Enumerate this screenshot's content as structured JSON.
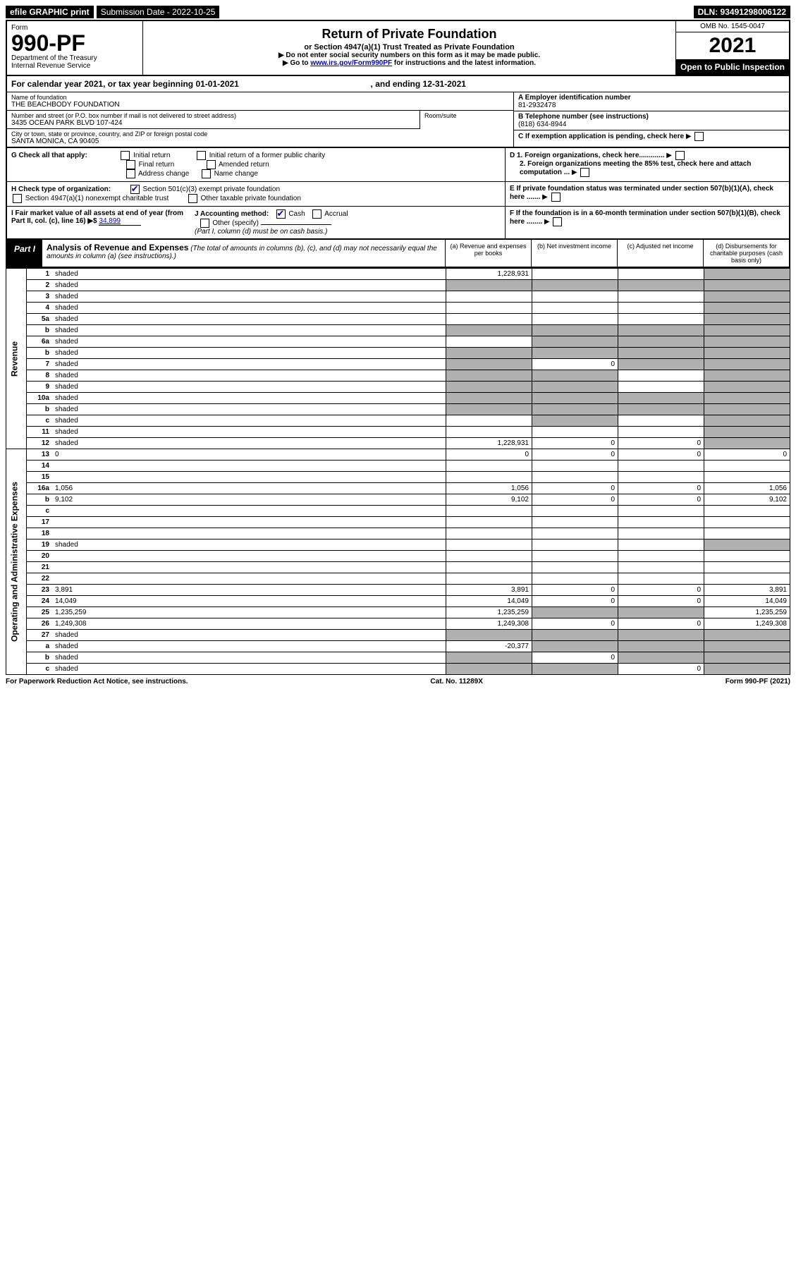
{
  "topbar": {
    "efile": "efile GRAPHIC print",
    "sub_label": "Submission Date - 2022-10-25",
    "dln": "DLN: 93491298006122"
  },
  "header": {
    "form_word": "Form",
    "form_no": "990-PF",
    "dept": "Department of the Treasury",
    "irs": "Internal Revenue Service",
    "title": "Return of Private Foundation",
    "subtitle": "or Section 4947(a)(1) Trust Treated as Private Foundation",
    "note1": "▶ Do not enter social security numbers on this form as it may be made public.",
    "note2_pre": "▶ Go to ",
    "note2_link": "www.irs.gov/Form990PF",
    "note2_post": " for instructions and the latest information.",
    "omb": "OMB No. 1545-0047",
    "year": "2021",
    "open": "Open to Public Inspection"
  },
  "cal_year": {
    "text_pre": "For calendar year 2021, or tax year beginning ",
    "begin": "01-01-2021",
    "mid": " , and ending ",
    "end": "12-31-2021"
  },
  "entity": {
    "name_label": "Name of foundation",
    "name": "THE BEACHBODY FOUNDATION",
    "addr_label": "Number and street (or P.O. box number if mail is not delivered to street address)",
    "addr": "3435 OCEAN PARK BLVD 107-424",
    "room_label": "Room/suite",
    "city_label": "City or town, state or province, country, and ZIP or foreign postal code",
    "city": "SANTA MONICA, CA  90405",
    "a_label": "A Employer identification number",
    "ein": "81-2932478",
    "b_label": "B Telephone number (see instructions)",
    "phone": "(818) 634-8944",
    "c_label": "C If exemption application is pending, check here",
    "d1": "D 1. Foreign organizations, check here.............",
    "d2": "2. Foreign organizations meeting the 85% test, check here and attach computation ...",
    "e_label": "E  If private foundation status was terminated under section 507(b)(1)(A), check here .......",
    "f_label": "F  If the foundation is in a 60-month termination under section 507(b)(1)(B), check here ........"
  },
  "g": {
    "label": "G Check all that apply:",
    "opts": [
      "Initial return",
      "Initial return of a former public charity",
      "Final return",
      "Amended return",
      "Address change",
      "Name change"
    ]
  },
  "h": {
    "label": "H Check type of organization:",
    "opt1": "Section 501(c)(3) exempt private foundation",
    "opt2": "Section 4947(a)(1) nonexempt charitable trust",
    "opt3": "Other taxable private foundation"
  },
  "i": {
    "label": "I Fair market value of all assets at end of year (from Part II, col. (c), line 16) ▶$",
    "value": "34,899"
  },
  "j": {
    "label": "J Accounting method:",
    "cash": "Cash",
    "accrual": "Accrual",
    "other": "Other (specify)",
    "note": "(Part I, column (d) must be on cash basis.)"
  },
  "part1": {
    "label": "Part I",
    "title": "Analysis of Revenue and Expenses",
    "note": "(The total of amounts in columns (b), (c), and (d) may not necessarily equal the amounts in column (a) (see instructions).)",
    "col_a": "(a)   Revenue and expenses per books",
    "col_b": "(b)   Net investment income",
    "col_c": "(c)   Adjusted net income",
    "col_d": "(d)   Disbursements for charitable purposes (cash basis only)"
  },
  "side": {
    "revenue": "Revenue",
    "expenses": "Operating and Administrative Expenses"
  },
  "rows": [
    {
      "n": "1",
      "d": "shaded",
      "a": "1,228,931",
      "b": "",
      "c": ""
    },
    {
      "n": "2",
      "d": "shaded",
      "a": "shaded",
      "b": "shaded",
      "c": "shaded"
    },
    {
      "n": "3",
      "d": "shaded",
      "a": "",
      "b": "",
      "c": ""
    },
    {
      "n": "4",
      "d": "shaded",
      "a": "",
      "b": "",
      "c": ""
    },
    {
      "n": "5a",
      "d": "shaded",
      "a": "",
      "b": "",
      "c": ""
    },
    {
      "n": "b",
      "d": "shaded",
      "a": "shaded",
      "b": "shaded",
      "c": "shaded"
    },
    {
      "n": "6a",
      "d": "shaded",
      "a": "",
      "b": "shaded",
      "c": "shaded"
    },
    {
      "n": "b",
      "d": "shaded",
      "a": "shaded",
      "b": "shaded",
      "c": "shaded"
    },
    {
      "n": "7",
      "d": "shaded",
      "a": "shaded",
      "b": "0",
      "c": "shaded"
    },
    {
      "n": "8",
      "d": "shaded",
      "a": "shaded",
      "b": "shaded",
      "c": ""
    },
    {
      "n": "9",
      "d": "shaded",
      "a": "shaded",
      "b": "shaded",
      "c": ""
    },
    {
      "n": "10a",
      "d": "shaded",
      "a": "shaded",
      "b": "shaded",
      "c": "shaded"
    },
    {
      "n": "b",
      "d": "shaded",
      "a": "shaded",
      "b": "shaded",
      "c": "shaded"
    },
    {
      "n": "c",
      "d": "shaded",
      "a": "",
      "b": "shaded",
      "c": ""
    },
    {
      "n": "11",
      "d": "shaded",
      "a": "",
      "b": "",
      "c": ""
    },
    {
      "n": "12",
      "d": "shaded",
      "a": "1,228,931",
      "b": "0",
      "c": "0"
    }
  ],
  "exp_rows": [
    {
      "n": "13",
      "d": "0",
      "a": "0",
      "b": "0",
      "c": "0"
    },
    {
      "n": "14",
      "d": "",
      "a": "",
      "b": "",
      "c": ""
    },
    {
      "n": "15",
      "d": "",
      "a": "",
      "b": "",
      "c": ""
    },
    {
      "n": "16a",
      "d": "1,056",
      "a": "1,056",
      "b": "0",
      "c": "0"
    },
    {
      "n": "b",
      "d": "9,102",
      "a": "9,102",
      "b": "0",
      "c": "0"
    },
    {
      "n": "c",
      "d": "",
      "a": "",
      "b": "",
      "c": ""
    },
    {
      "n": "17",
      "d": "",
      "a": "",
      "b": "",
      "c": ""
    },
    {
      "n": "18",
      "d": "",
      "a": "",
      "b": "",
      "c": ""
    },
    {
      "n": "19",
      "d": "shaded",
      "a": "",
      "b": "",
      "c": ""
    },
    {
      "n": "20",
      "d": "",
      "a": "",
      "b": "",
      "c": ""
    },
    {
      "n": "21",
      "d": "",
      "a": "",
      "b": "",
      "c": ""
    },
    {
      "n": "22",
      "d": "",
      "a": "",
      "b": "",
      "c": ""
    },
    {
      "n": "23",
      "d": "3,891",
      "a": "3,891",
      "b": "0",
      "c": "0"
    },
    {
      "n": "24",
      "d": "14,049",
      "a": "14,049",
      "b": "0",
      "c": "0"
    },
    {
      "n": "25",
      "d": "1,235,259",
      "a": "1,235,259",
      "b": "shaded",
      "c": "shaded"
    },
    {
      "n": "26",
      "d": "1,249,308",
      "a": "1,249,308",
      "b": "0",
      "c": "0"
    },
    {
      "n": "27",
      "d": "shaded",
      "a": "shaded",
      "b": "shaded",
      "c": "shaded"
    },
    {
      "n": "a",
      "d": "shaded",
      "a": "-20,377",
      "b": "shaded",
      "c": "shaded"
    },
    {
      "n": "b",
      "d": "shaded",
      "a": "shaded",
      "b": "0",
      "c": "shaded"
    },
    {
      "n": "c",
      "d": "shaded",
      "a": "shaded",
      "b": "shaded",
      "c": "0"
    }
  ],
  "footer": {
    "left": "For Paperwork Reduction Act Notice, see instructions.",
    "mid": "Cat. No. 11289X",
    "right": "Form 990-PF (2021)"
  }
}
